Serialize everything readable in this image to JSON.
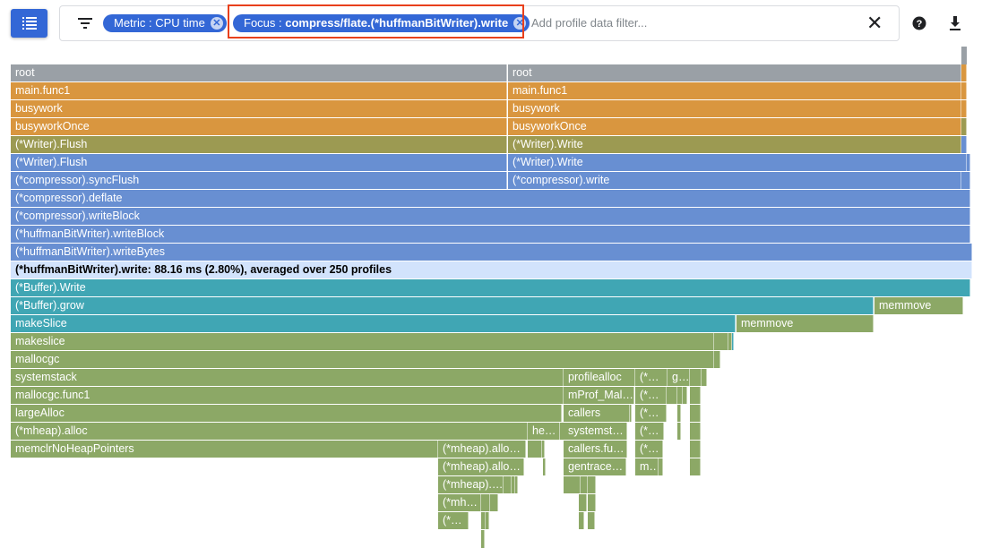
{
  "toolbar": {
    "menu_icon": "list-icon",
    "filter_icon": "filter-icon",
    "chips": [
      {
        "label": "Metric : ",
        "value": "CPU time"
      },
      {
        "label": "Focus : ",
        "value": "compress/flate.(*huffmanBitWriter).write"
      }
    ],
    "filter_placeholder": "Add profile data filter...",
    "clear_icon": "close-icon",
    "help_icon": "help-icon",
    "download_icon": "download-icon"
  },
  "colors": {
    "gray": "#9aa0a6",
    "orange": "#d9963f",
    "olive": "#9c9a52",
    "blue": "#688fd2",
    "hl": "#d2e3fc",
    "teal": "#40a6b4",
    "green": "#8ca866",
    "accent": "#3367d6",
    "focus_border": "#e8401c"
  },
  "flame": {
    "frames": [
      {
        "label": "root",
        "color": "gray"
      },
      {
        "label": "root",
        "color": "gray"
      },
      {
        "label": "main.func1",
        "color": "orange"
      },
      {
        "label": "main.func1",
        "color": "orange"
      },
      {
        "label": "busywork",
        "color": "orange"
      },
      {
        "label": "busywork",
        "color": "orange"
      },
      {
        "label": "busyworkOnce",
        "color": "orange"
      },
      {
        "label": "busyworkOnce",
        "color": "orange"
      },
      {
        "label": "(*Writer).Flush",
        "color": "olive"
      },
      {
        "label": "(*Writer).Write",
        "color": "olive"
      },
      {
        "label": "(*Writer).Flush",
        "color": "blue"
      },
      {
        "label": "(*Writer).Write",
        "color": "blue"
      },
      {
        "label": "(*compressor).syncFlush",
        "color": "blue"
      },
      {
        "label": "(*compressor).write",
        "color": "blue"
      },
      {
        "label": "(*compressor).deflate",
        "color": "blue"
      },
      {
        "label": "(*compressor).writeBlock",
        "color": "blue"
      },
      {
        "label": "(*huffmanBitWriter).writeBlock",
        "color": "blue"
      },
      {
        "label": "(*huffmanBitWriter).writeBytes",
        "color": "blue"
      },
      {
        "label": "(*huffmanBitWriter).write: 88.16 ms (2.80%), averaged over 250 profiles",
        "color": "hl"
      },
      {
        "label": "(*Buffer).Write",
        "color": "teal"
      },
      {
        "label": "(*Buffer).grow",
        "color": "teal"
      },
      {
        "label": "memmove",
        "color": "green"
      },
      {
        "label": "makeSlice",
        "color": "teal"
      },
      {
        "label": "memmove",
        "color": "green"
      },
      {
        "label": "makeslice",
        "color": "green"
      },
      {
        "label": "mallocgc",
        "color": "green"
      },
      {
        "label": "systemstack",
        "color": "green"
      },
      {
        "label": "profilealloc",
        "color": "green"
      },
      {
        "label": "(*…",
        "color": "green"
      },
      {
        "label": "g…",
        "color": "green"
      },
      {
        "label": "mallocgc.func1",
        "color": "green"
      },
      {
        "label": "mProf_Mal…",
        "color": "green"
      },
      {
        "label": "(*…",
        "color": "green"
      },
      {
        "label": "largeAlloc",
        "color": "green"
      },
      {
        "label": "callers",
        "color": "green"
      },
      {
        "label": "(*…",
        "color": "green"
      },
      {
        "label": "(*mheap).alloc",
        "color": "green"
      },
      {
        "label": "he…",
        "color": "green"
      },
      {
        "label": "systemst…",
        "color": "green"
      },
      {
        "label": "(*…",
        "color": "green"
      },
      {
        "label": "memclrNoHeapPointers",
        "color": "green"
      },
      {
        "label": "(*mheap).allo…",
        "color": "green"
      },
      {
        "label": "callers.fu…",
        "color": "green"
      },
      {
        "label": "(*…",
        "color": "green"
      },
      {
        "label": "(*mheap).allo…",
        "color": "green"
      },
      {
        "label": "gentrace…",
        "color": "green"
      },
      {
        "label": "m…",
        "color": "green"
      },
      {
        "label": "(*mheap).…",
        "color": "green"
      },
      {
        "label": "(*mh…",
        "color": "green"
      },
      {
        "label": "(*…",
        "color": "green"
      }
    ]
  }
}
